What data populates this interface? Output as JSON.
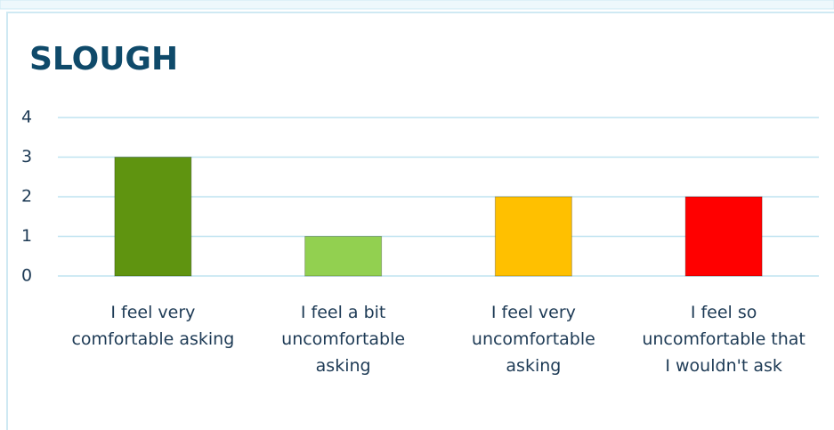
{
  "chart_data": {
    "type": "bar",
    "title": "SLOUGH",
    "categories": [
      "I feel very comfortable asking",
      "I feel a bit uncomfortable asking",
      "I feel very uncomfortable asking",
      "I feel so uncomfortable that I wouldn't ask"
    ],
    "values": [
      3,
      1,
      2,
      2
    ],
    "colors": [
      "#5f9410",
      "#92d050",
      "#ffc000",
      "#ff0000"
    ],
    "ylim": [
      0,
      4
    ],
    "yticks": [
      0,
      1,
      2,
      3,
      4
    ],
    "grid": true
  }
}
